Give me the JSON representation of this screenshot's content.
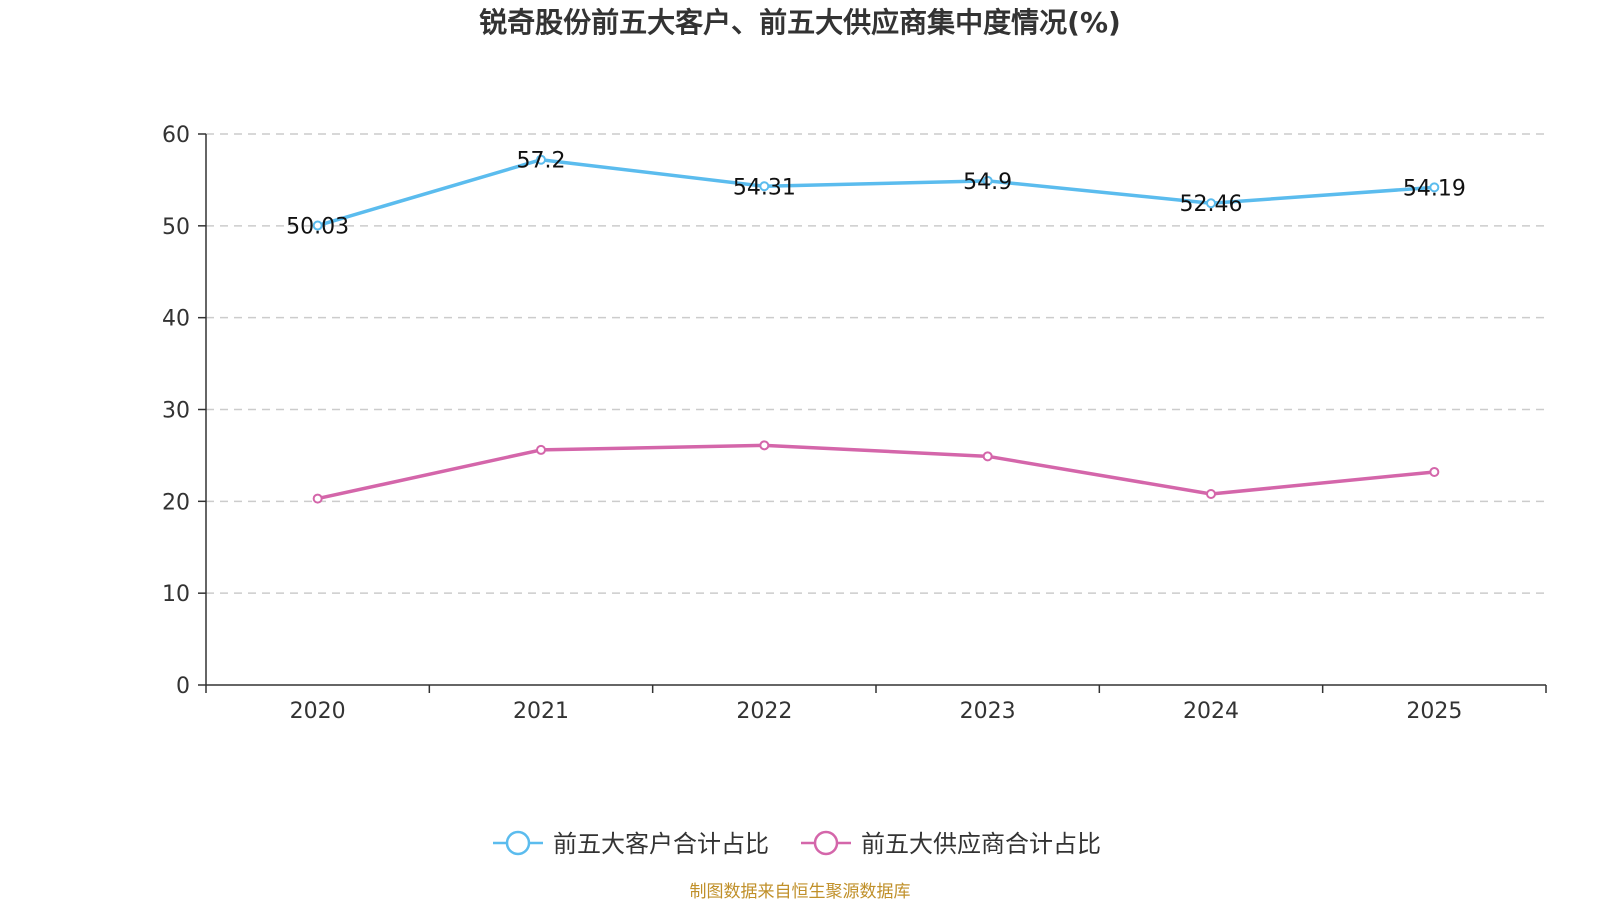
{
  "chart_data": {
    "type": "line",
    "title": "锐奇股份前五大客户、前五大供应商集中度情况(%)",
    "categories": [
      "2020",
      "2021",
      "2022",
      "2023",
      "2024",
      "2025"
    ],
    "ylim": [
      0,
      60
    ],
    "yticks": [
      0,
      10,
      20,
      30,
      40,
      50,
      60
    ],
    "grid": true,
    "legend_position": "bottom-center",
    "series": [
      {
        "name": "前五大客户合计占比",
        "color": "#5bbcee",
        "values": [
          50.03,
          57.2,
          54.31,
          54.9,
          52.46,
          54.19
        ],
        "labels": [
          "50.03",
          "57.2",
          "54.31",
          "54.9",
          "52.46",
          "54.19"
        ],
        "show_labels": true
      },
      {
        "name": "前五大供应商合计占比",
        "color": "#d466aa",
        "values": [
          20.3,
          25.6,
          26.1,
          24.9,
          20.8,
          23.2
        ],
        "show_labels": false
      }
    ]
  },
  "source": {
    "text": "制图数据来自恒生聚源数据库",
    "color": "#c0902a"
  },
  "colors": {
    "axis": "#333333",
    "grid": "#cccccc"
  }
}
